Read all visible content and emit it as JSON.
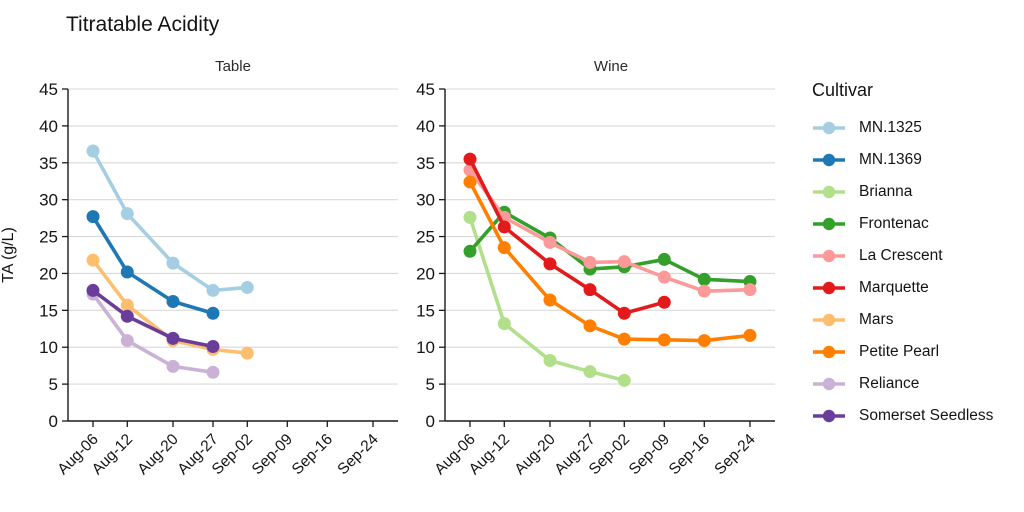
{
  "chart_data": {
    "type": "line",
    "title": "Titratable Acidity",
    "ylabel": "TA (g/L)",
    "ylim": [
      0,
      45
    ],
    "yticks": [
      0,
      5,
      10,
      15,
      20,
      25,
      30,
      35,
      40,
      45
    ],
    "x_max_day": 49,
    "x_tick_days": [
      0,
      6,
      14,
      21,
      27,
      34,
      41,
      49
    ],
    "x_tick_labels": [
      "Aug-06",
      "Aug-12",
      "Aug-20",
      "Aug-27",
      "Sep-02",
      "Sep-09",
      "Sep-16",
      "Sep-24"
    ],
    "grid": "horizontal-only",
    "legend_position": "right",
    "panels": [
      {
        "label": "Table",
        "series": [
          {
            "name": "MN.1325",
            "color": "#A6CEE3",
            "days": [
              0,
              6,
              14,
              21,
              27
            ],
            "values": [
              36.6,
              28.1,
              21.4,
              17.7,
              18.1
            ]
          },
          {
            "name": "MN.1369",
            "color": "#1F78B4",
            "days": [
              0,
              6,
              14,
              21
            ],
            "values": [
              27.7,
              20.2,
              16.2,
              14.6
            ]
          },
          {
            "name": "Mars",
            "color": "#FDBF6F",
            "days": [
              0,
              6,
              14,
              21,
              27
            ],
            "values": [
              21.8,
              15.7,
              10.9,
              9.7,
              9.2
            ]
          },
          {
            "name": "Reliance",
            "color": "#CAB2D6",
            "days": [
              0,
              6,
              14,
              21
            ],
            "values": [
              17.2,
              10.9,
              7.4,
              6.6
            ]
          },
          {
            "name": "Somerset Seedless",
            "color": "#6A3D9A",
            "days": [
              0,
              6,
              14,
              21
            ],
            "values": [
              17.7,
              14.2,
              11.2,
              10.1
            ]
          }
        ]
      },
      {
        "label": "Wine",
        "series": [
          {
            "name": "Brianna",
            "color": "#B2DF8A",
            "days": [
              0,
              6,
              14,
              21,
              27
            ],
            "values": [
              27.6,
              13.2,
              8.2,
              6.7,
              5.5
            ]
          },
          {
            "name": "Frontenac",
            "color": "#33A02C",
            "days": [
              0,
              6,
              14,
              21,
              27,
              34,
              41,
              49
            ],
            "values": [
              23.0,
              28.3,
              24.8,
              20.6,
              20.9,
              21.9,
              19.2,
              18.9
            ]
          },
          {
            "name": "La Crescent",
            "color": "#FB9A99",
            "days": [
              0,
              6,
              14,
              21,
              27,
              34,
              41,
              49
            ],
            "values": [
              34.0,
              27.6,
              24.2,
              21.5,
              21.6,
              19.5,
              17.6,
              17.8
            ]
          },
          {
            "name": "Marquette",
            "color": "#E31A1C",
            "days": [
              0,
              6,
              14,
              21,
              27,
              34
            ],
            "values": [
              35.5,
              26.3,
              21.3,
              17.8,
              14.6,
              16.1
            ]
          },
          {
            "name": "Petite Pearl",
            "color": "#FF7F00",
            "days": [
              0,
              6,
              14,
              21,
              27,
              34,
              41,
              49
            ],
            "values": [
              32.4,
              23.5,
              16.4,
              12.9,
              11.1,
              11.0,
              10.9,
              11.6
            ]
          }
        ]
      }
    ],
    "legend": {
      "title": "Cultivar",
      "items": [
        {
          "label": "MN.1325",
          "color": "#A6CEE3"
        },
        {
          "label": "MN.1369",
          "color": "#1F78B4"
        },
        {
          "label": "Brianna",
          "color": "#B2DF8A"
        },
        {
          "label": "Frontenac",
          "color": "#33A02C"
        },
        {
          "label": "La Crescent",
          "color": "#FB9A99"
        },
        {
          "label": "Marquette",
          "color": "#E31A1C"
        },
        {
          "label": "Mars",
          "color": "#FDBF6F"
        },
        {
          "label": "Petite Pearl",
          "color": "#FF7F00"
        },
        {
          "label": "Reliance",
          "color": "#CAB2D6"
        },
        {
          "label": "Somerset Seedless",
          "color": "#6A3D9A"
        }
      ]
    },
    "style_colors": {
      "grid": "#d9d9d9",
      "axis": "#1a1a1a",
      "background": "#ffffff"
    }
  }
}
